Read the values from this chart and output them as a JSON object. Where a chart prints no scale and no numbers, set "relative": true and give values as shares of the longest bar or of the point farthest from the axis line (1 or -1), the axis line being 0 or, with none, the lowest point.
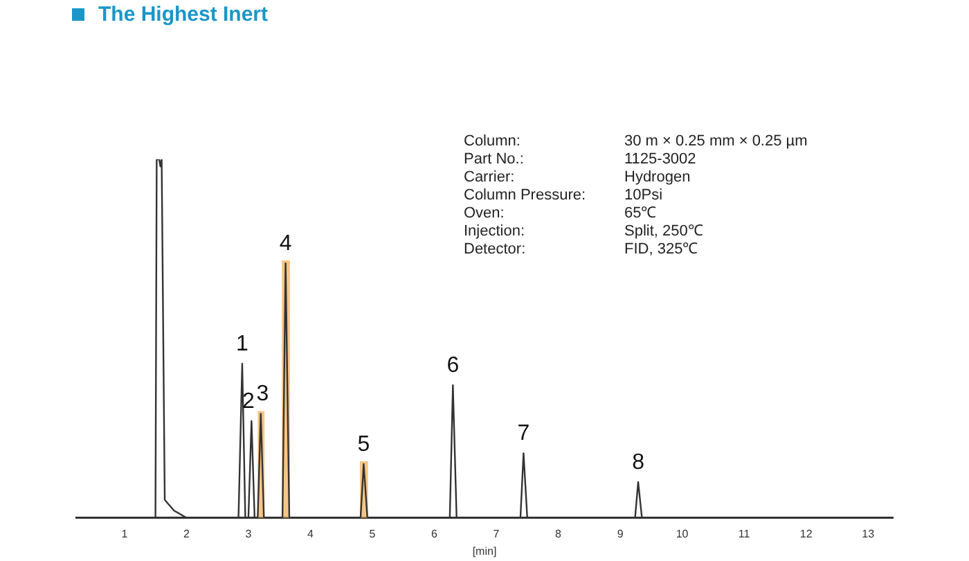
{
  "chart_data": {
    "type": "line",
    "title": "The Highest Inert",
    "xlabel": "[min]",
    "relative": true,
    "legend": false,
    "grid": false,
    "marker": "none",
    "tick_labels": "x",
    "xlim": [
      0.22,
      13.4
    ],
    "xticks": [
      1,
      2,
      3,
      4,
      5,
      6,
      7,
      8,
      9,
      10,
      11,
      12,
      13
    ],
    "series": [
      {
        "color": "#333333",
        "x": [
          0.22,
          1.5,
          1.52,
          1.56,
          1.58,
          1.6,
          1.65,
          1.8,
          2.0,
          2.84,
          2.9,
          2.95,
          3.0,
          3.05,
          3.1,
          3.15,
          3.2,
          3.25,
          3.55,
          3.6,
          3.66,
          4.81,
          4.86,
          4.92,
          6.25,
          6.3,
          6.36,
          7.39,
          7.44,
          7.5,
          9.24,
          9.29,
          9.35,
          13.4
        ],
        "values": [
          0,
          0,
          1,
          1,
          0.98,
          1,
          0.05,
          0.02,
          0,
          0,
          0.43,
          0,
          0,
          0.27,
          0,
          0,
          0.29,
          0,
          0,
          0.71,
          0,
          0,
          0.15,
          0,
          0,
          0.37,
          0,
          0,
          0.18,
          0,
          0,
          0.1,
          0,
          0
        ]
      }
    ],
    "bands": [
      {
        "axis": "x",
        "from": 3.15,
        "to": 3.26,
        "color": "#f3b35c"
      },
      {
        "axis": "x",
        "from": 3.54,
        "to": 3.67,
        "color": "#f3b35c"
      },
      {
        "axis": "x",
        "from": 4.8,
        "to": 4.93,
        "color": "#f3b35c"
      }
    ],
    "annotations": [
      {
        "text": "1",
        "x": 2.9,
        "y": 0.43
      },
      {
        "text": "2",
        "x": 3.0,
        "y": 0.27
      },
      {
        "text": "3",
        "x": 3.23,
        "y": 0.29
      },
      {
        "text": "4",
        "x": 3.6,
        "y": 0.71
      },
      {
        "text": "5",
        "x": 4.86,
        "y": 0.15
      },
      {
        "text": "6",
        "x": 6.3,
        "y": 0.37
      },
      {
        "text": "7",
        "x": 7.44,
        "y": 0.18
      },
      {
        "text": "8",
        "x": 9.29,
        "y": 0.1
      },
      "Column:",
      "30 m × 0.25 mm × 0.25 µm",
      "Part No.:",
      "1125-3002",
      "Carrier:",
      "Hydrogen",
      "Column Pressure:",
      "10Psi",
      "Oven:",
      "65℃",
      "Injection:",
      "Split, 250℃",
      "Detector:",
      "FID, 325℃"
    ]
  }
}
